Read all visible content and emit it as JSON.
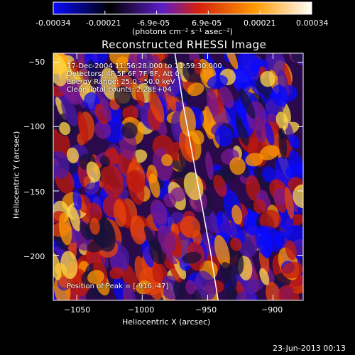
{
  "colorbar": {
    "ticks": [
      "-0.00034",
      "-0.00021",
      "-6.9e-05",
      "6.9e-05",
      "0.00021",
      "0.00034"
    ],
    "unit_label": "(photons cm⁻² s⁻¹ asec⁻²)",
    "colors": [
      "#0a0aff",
      "#000000",
      "#5b1ec7",
      "#d41f0f",
      "#ff9a00",
      "#ffffff"
    ]
  },
  "title": "Reconstructed RHESSI Image",
  "annotations": {
    "line1": "17-Dec-2004 11:56:28.000 to 11:59:30.000",
    "line2": "Detectors: 4F 5F 6F 7F 8F, Att 0",
    "line3": "Energy Range: 25.0 - 50.0 keV",
    "line4": "Clean     Total counts: 2.28E+04",
    "peak": "Position of Peak = [-916,-47]"
  },
  "footer_timestamp": "23-Jun-2013 00:13",
  "chart_data": {
    "type": "heatmap",
    "title": "Reconstructed RHESSI Image",
    "xlabel": "Heliocentric X (arcsec)",
    "ylabel": "Heliocentric Y (arcsec)",
    "xlim": [
      -1068,
      -877
    ],
    "ylim": [
      -235,
      -43
    ],
    "xticks": [
      -1050,
      -1000,
      -950,
      -900
    ],
    "yticks": [
      -50,
      -100,
      -150,
      -200
    ],
    "xtick_labels": [
      "−1050",
      "−1000",
      "−950",
      "−900"
    ],
    "ytick_labels": [
      "−50",
      "−100",
      "−150",
      "−200"
    ],
    "zlim": [
      -0.00034,
      0.00034
    ],
    "peak": [
      -916,
      -47
    ],
    "limb_curve_x": [
      -975,
      -969,
      -962,
      -955,
      -948,
      -942
    ]
  }
}
